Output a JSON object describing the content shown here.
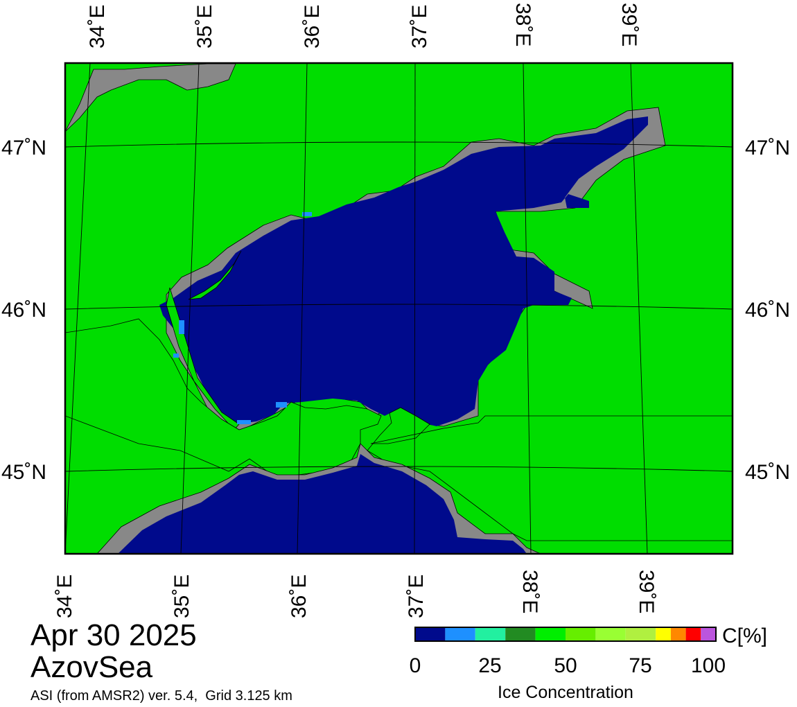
{
  "info": {
    "date": "Apr 30 2025",
    "region": "AzovSea",
    "source_line": "ASI (from AMSR2) ver. 5.4,  Grid 3.125 km"
  },
  "map": {
    "top_longitude_labels": [
      "34˚E",
      "35˚E",
      "36˚E",
      "37˚E",
      "38˚E",
      "39˚E"
    ],
    "bottom_longitude_labels": [
      "34˚E",
      "35˚E",
      "36˚E",
      "37˚E",
      "38˚E",
      "39˚E"
    ],
    "left_latitude_labels": [
      "47˚N",
      "46˚N",
      "45˚N"
    ],
    "right_latitude_labels": [
      "47˚N",
      "46˚N",
      "45˚N"
    ],
    "colors": {
      "land": "#00dd00",
      "coast_mask": "#888888",
      "open_water": "#000a8c",
      "low_ice": "#1e90ff",
      "border": "#000000"
    }
  },
  "legend": {
    "unit": "C[%]",
    "title": "Ice Concentration",
    "ticks": [
      "0",
      "25",
      "50",
      "75",
      "100"
    ],
    "colors": [
      "#000a8c",
      "#1e90ff",
      "#22f0a0",
      "#228b22",
      "#00ee00",
      "#66ee00",
      "#99ff33",
      "#b0f040",
      "#ffff00",
      "#ff8800",
      "#ff0000",
      "#bb55dd",
      "#8800cc"
    ]
  }
}
